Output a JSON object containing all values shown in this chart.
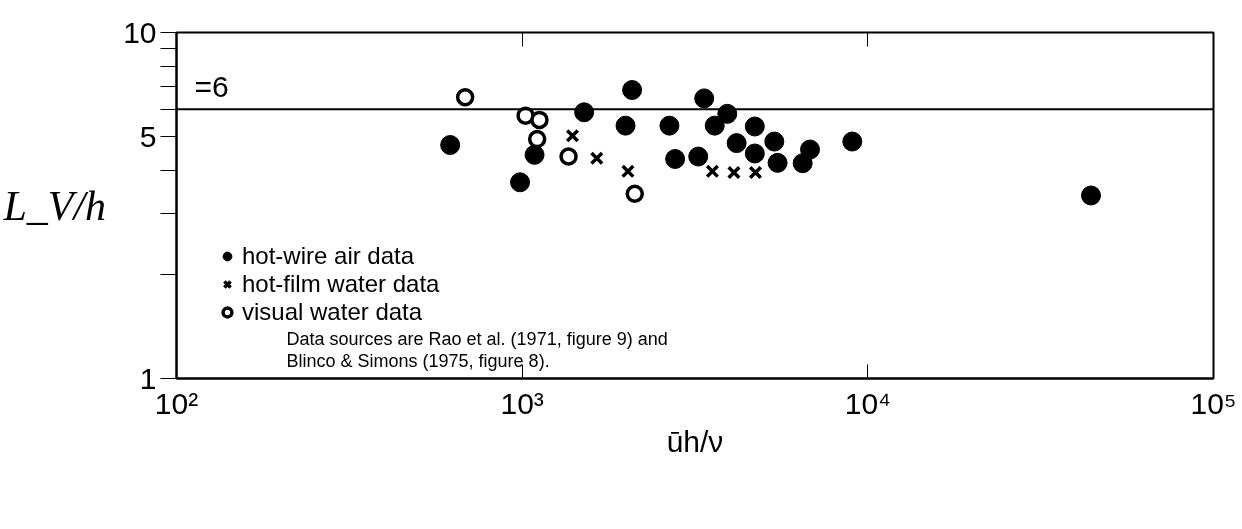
{
  "chart_data": {
    "type": "scatter",
    "xlabel": "ūh/ν",
    "ylabel": "L_V/h",
    "log": "xy",
    "grid": false,
    "legend": "left",
    "xlim": [
      100,
      100000
    ],
    "ylim": [
      1,
      10
    ],
    "xticks": [
      {
        "value": 100,
        "label": "10²"
      },
      {
        "value": 1000,
        "label": "10³"
      },
      {
        "value": 10000,
        "label": "10⁴"
      },
      {
        "value": 100000,
        "label": "10⁵"
      }
    ],
    "yticks": [
      1,
      {
        "value": 2,
        "label": null
      },
      {
        "value": 3,
        "label": null
      },
      {
        "value": 4,
        "label": null
      },
      5,
      {
        "value": 6,
        "label": null
      },
      {
        "value": 7,
        "label": null
      },
      {
        "value": 8,
        "label": null
      },
      {
        "value": 9,
        "label": null
      },
      10
    ],
    "ref_lines": [
      {
        "axis": "y",
        "value": 6,
        "label": "=6",
        "color": "#000000"
      }
    ],
    "annotations": [
      "Data sources are Rao et al. (1971, figure 9) and\nBlinco & Simons (1975, figure 8)."
    ],
    "series": [
      {
        "name": "hot-wire air data",
        "color": "#000000",
        "marker": "circle",
        "x": [
          619,
          1086,
          986,
          1511,
          1991,
          2080,
          2667,
          3362,
          3921,
          3606,
          4710,
          4173,
          5363,
          4710,
          2770,
          3231,
          5482,
          6803,
          6479,
          9016,
          44220
        ],
        "values": [
          4.73,
          4.43,
          3.69,
          5.88,
          5.38,
          6.82,
          5.38,
          6.45,
          5.82,
          5.38,
          5.35,
          4.79,
          4.84,
          4.47,
          4.31,
          4.38,
          4.2,
          4.59,
          4.19,
          4.84,
          3.38
        ]
      },
      {
        "name": "hot-film water data",
        "color": "#000000",
        "marker": "cross",
        "x": [
          1398,
          1644,
          2023,
          3551,
          4099,
          4731
        ],
        "values": [
          5.03,
          4.33,
          3.97,
          3.97,
          3.94,
          3.94
        ]
      },
      {
        "name": "visual water data",
        "color": "#000000",
        "marker": "circle_open",
        "x": [
          684,
          1023,
          1122,
          1105,
          1362,
          2117
        ],
        "values": [
          6.5,
          5.75,
          5.59,
          4.92,
          4.38,
          3.42
        ]
      }
    ]
  }
}
